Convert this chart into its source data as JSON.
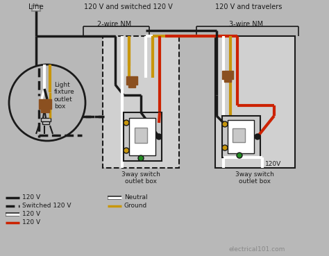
{
  "bg_color": "#b8b8b8",
  "line_label": "Line",
  "section_label_1": "120 V and switched 120 V",
  "section_label_2": "120 V and travelers",
  "cable_label_1": "2-wire NM",
  "cable_label_2": "3-wire NM",
  "box_label_1": "3way switch\noutlet box",
  "box_label_2": "3way switch\noutlet box",
  "fixture_label": "Light\nfixture\noutlet\nbox",
  "voltage_label": "120V",
  "website": "electrical101.com",
  "BLACK": "#1a1a1a",
  "WHITE": "#ffffff",
  "RED": "#cc2200",
  "GOLD": "#c8960c",
  "BROWN": "#8B5020",
  "GREEN": "#228b22",
  "LGRAY": "#c8c8c8",
  "DGRAY": "#888888",
  "BOXFC": "#d0d0d0"
}
